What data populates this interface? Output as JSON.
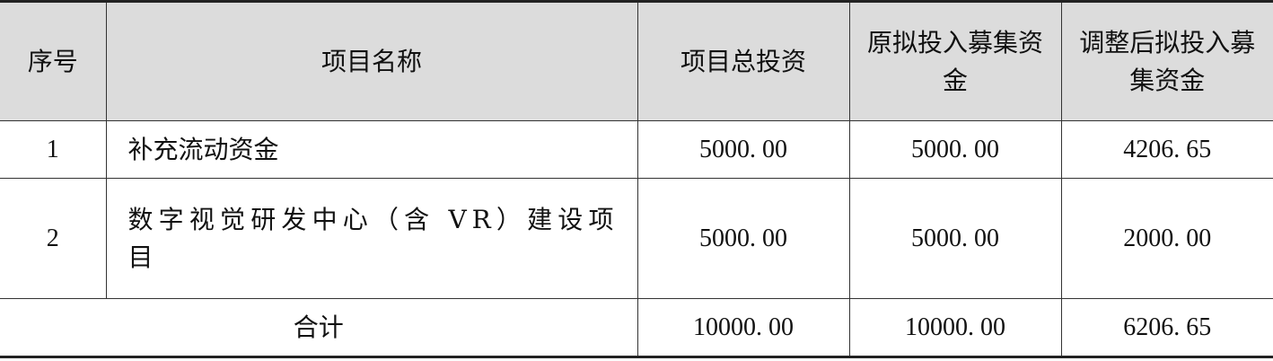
{
  "headers": [
    "序号",
    "项目名称",
    "项目总投资",
    "原拟投入募集资金",
    "调整后拟投入募集资金"
  ],
  "rows": [
    {
      "index": "1",
      "name": "补充流动资金",
      "total": "5000. 00",
      "original": "5000. 00",
      "adjusted": "4206. 65"
    },
    {
      "index": "2",
      "name": "数字视觉研发中心（含 VR）建设项目",
      "total": "5000. 00",
      "original": "5000. 00",
      "adjusted": "2000. 00"
    }
  ],
  "total_row": {
    "label": "合计",
    "total": "10000. 00",
    "original": "10000. 00",
    "adjusted": "6206. 65"
  },
  "colors": {
    "header_bg": "#dcdcdc",
    "border": "#333333"
  }
}
